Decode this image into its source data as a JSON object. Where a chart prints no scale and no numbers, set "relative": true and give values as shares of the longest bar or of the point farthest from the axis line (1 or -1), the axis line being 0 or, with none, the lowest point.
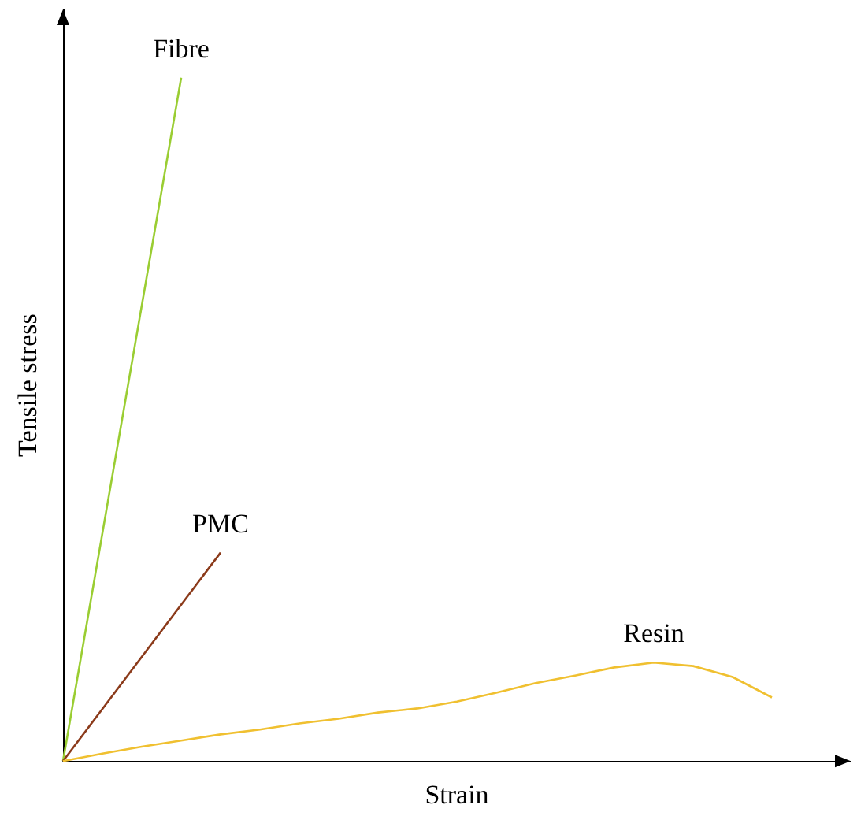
{
  "chart_data": {
    "type": "line",
    "relative": true,
    "xlabel": "Strain",
    "ylabel": "Tensile stress",
    "categories": [
      null,
      null,
      null,
      null,
      null,
      null,
      null,
      null,
      null,
      null,
      null,
      null,
      null,
      null,
      null,
      null,
      null,
      null,
      null,
      null,
      null
    ],
    "grid": false,
    "legend": false,
    "marker": "none",
    "line_style": "solid",
    "series": [
      {
        "name": "Fibre",
        "color": "#9acd32",
        "values": [
          0,
          null,
          null,
          1,
          null,
          null,
          null,
          null,
          null,
          null,
          null,
          null,
          null,
          null,
          null,
          null,
          null,
          null,
          null,
          null,
          null
        ]
      },
      {
        "name": "PMC",
        "color": "#8b3a1a",
        "values": [
          0,
          null,
          null,
          null,
          0.305,
          null,
          null,
          null,
          null,
          null,
          null,
          null,
          null,
          null,
          null,
          null,
          null,
          null,
          null,
          null,
          null
        ]
      },
      {
        "name": "Resin",
        "color": "#f0c030",
        "values": [
          0,
          0.011,
          0.021,
          0.03,
          0.039,
          0.046,
          0.055,
          0.062,
          0.071,
          0.077,
          0.087,
          0.1,
          0.114,
          0.125,
          0.137,
          0.144,
          0.139,
          0.123,
          0.093,
          null,
          null
        ]
      }
    ]
  }
}
